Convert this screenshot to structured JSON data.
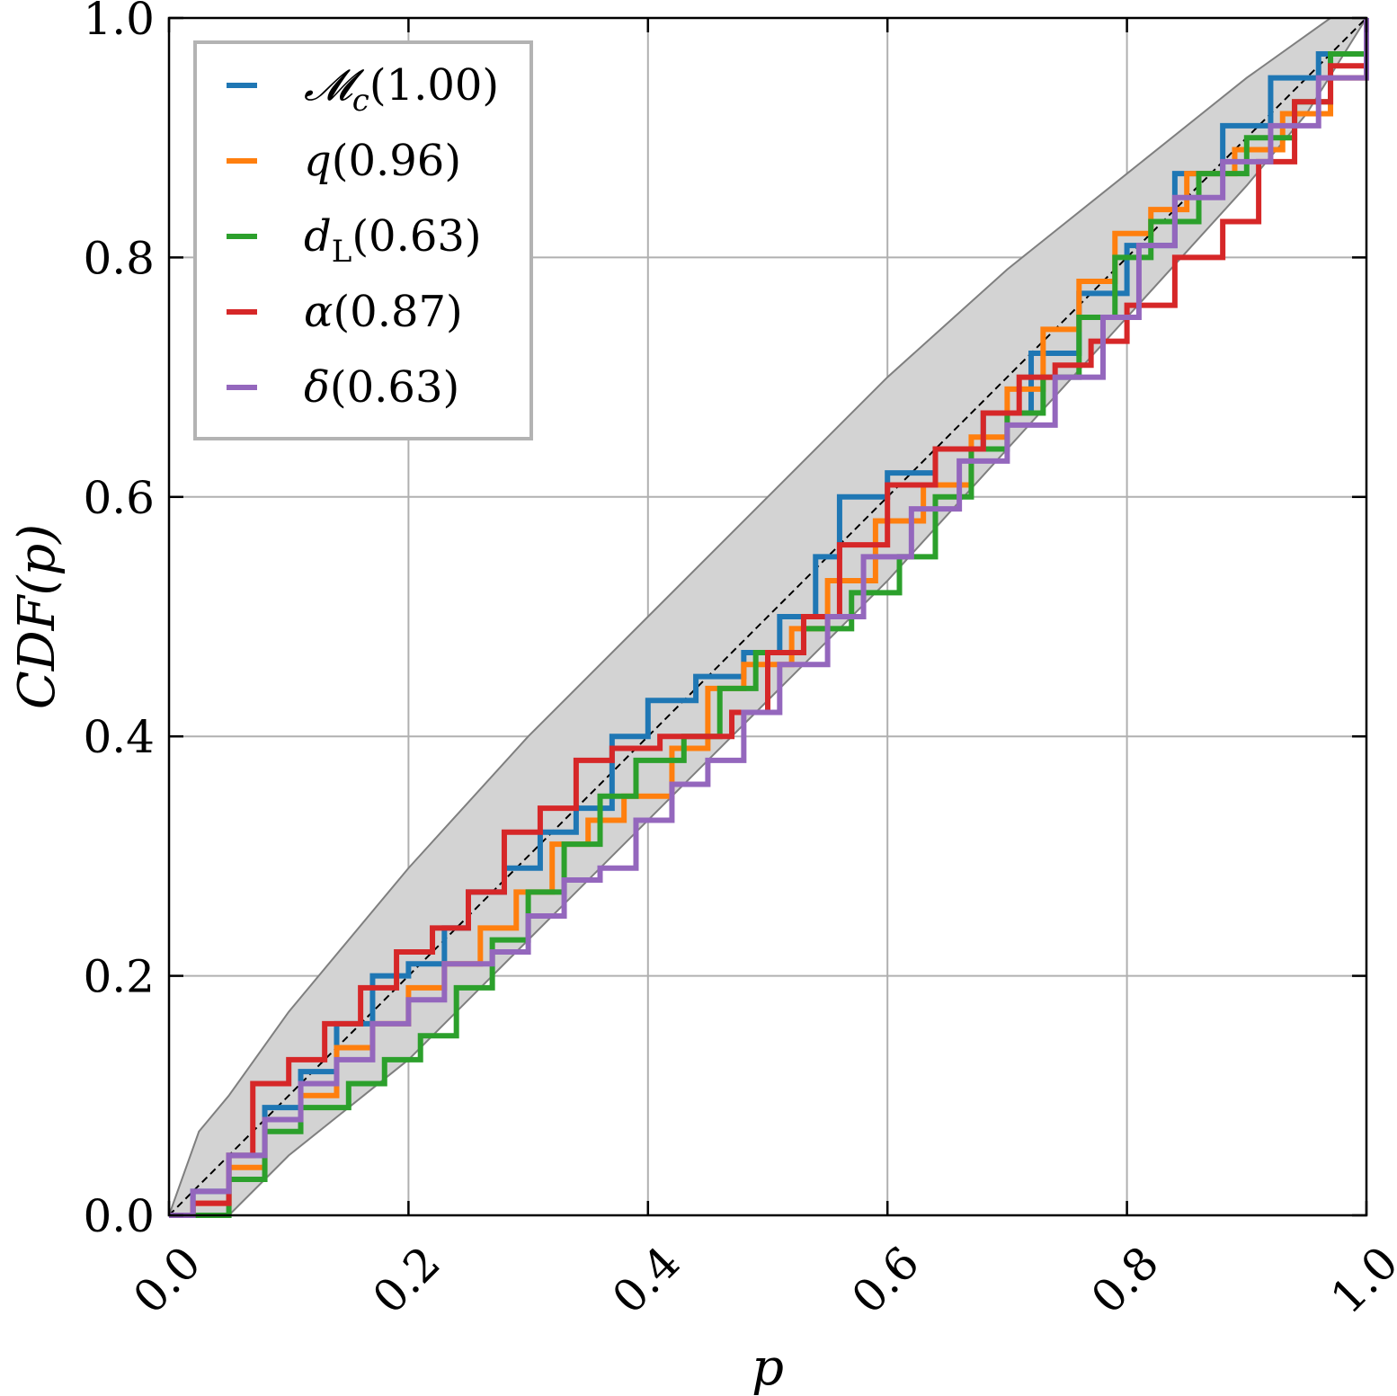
{
  "chart_data": {
    "type": "line",
    "xlabel": "p",
    "ylabel": "CDF(p)",
    "xlim": [
      0,
      1
    ],
    "ylim": [
      0,
      1
    ],
    "xticks": [
      "0.0",
      "0.2",
      "0.4",
      "0.6",
      "0.8",
      "1.0"
    ],
    "yticks": [
      "0.0",
      "0.2",
      "0.4",
      "0.6",
      "0.8",
      "1.0"
    ],
    "grid": true,
    "legend_position": "top-left",
    "confidence_band": {
      "lower": [
        [
          0,
          0
        ],
        [
          0.05,
          0.0
        ],
        [
          0.1,
          0.05
        ],
        [
          0.2,
          0.13
        ],
        [
          0.3,
          0.23
        ],
        [
          0.4,
          0.33
        ],
        [
          0.5,
          0.43
        ],
        [
          0.6,
          0.53
        ],
        [
          0.7,
          0.64
        ],
        [
          0.8,
          0.75
        ],
        [
          0.9,
          0.86
        ],
        [
          0.95,
          0.92
        ],
        [
          1,
          1
        ]
      ],
      "upper": [
        [
          0,
          0
        ],
        [
          0.025,
          0.07
        ],
        [
          0.05,
          0.1
        ],
        [
          0.1,
          0.17
        ],
        [
          0.2,
          0.29
        ],
        [
          0.3,
          0.4
        ],
        [
          0.4,
          0.5
        ],
        [
          0.5,
          0.6
        ],
        [
          0.6,
          0.7
        ],
        [
          0.7,
          0.79
        ],
        [
          0.8,
          0.87
        ],
        [
          0.9,
          0.95
        ],
        [
          0.97,
          1.0
        ],
        [
          1,
          1
        ]
      ],
      "color": "#d3d3d3"
    },
    "diagonal": {
      "from": [
        0,
        0
      ],
      "to": [
        1,
        1
      ],
      "style": "dashed",
      "color": "#000000"
    },
    "series": [
      {
        "label_main": "𝓜",
        "label_sub": "c",
        "label_value": "(1.00)",
        "color": "#1f77b4",
        "points": [
          [
            0,
            0
          ],
          [
            0.02,
            0.02
          ],
          [
            0.05,
            0.05
          ],
          [
            0.08,
            0.09
          ],
          [
            0.11,
            0.12
          ],
          [
            0.14,
            0.16
          ],
          [
            0.17,
            0.2
          ],
          [
            0.2,
            0.21
          ],
          [
            0.23,
            0.24
          ],
          [
            0.25,
            0.27
          ],
          [
            0.28,
            0.29
          ],
          [
            0.31,
            0.32
          ],
          [
            0.34,
            0.34
          ],
          [
            0.37,
            0.4
          ],
          [
            0.4,
            0.43
          ],
          [
            0.44,
            0.45
          ],
          [
            0.48,
            0.47
          ],
          [
            0.51,
            0.5
          ],
          [
            0.54,
            0.55
          ],
          [
            0.56,
            0.6
          ],
          [
            0.6,
            0.62
          ],
          [
            0.64,
            0.64
          ],
          [
            0.68,
            0.67
          ],
          [
            0.72,
            0.72
          ],
          [
            0.76,
            0.77
          ],
          [
            0.8,
            0.81
          ],
          [
            0.84,
            0.87
          ],
          [
            0.88,
            0.91
          ],
          [
            0.92,
            0.95
          ],
          [
            0.96,
            0.97
          ],
          [
            1,
            1
          ]
        ]
      },
      {
        "label_main": "q",
        "label_sub": "",
        "label_value": "(0.96)",
        "color": "#ff7f0e",
        "points": [
          [
            0,
            0
          ],
          [
            0.02,
            0.01
          ],
          [
            0.05,
            0.04
          ],
          [
            0.08,
            0.08
          ],
          [
            0.11,
            0.1
          ],
          [
            0.14,
            0.14
          ],
          [
            0.17,
            0.16
          ],
          [
            0.2,
            0.19
          ],
          [
            0.23,
            0.21
          ],
          [
            0.26,
            0.24
          ],
          [
            0.29,
            0.27
          ],
          [
            0.32,
            0.31
          ],
          [
            0.35,
            0.33
          ],
          [
            0.38,
            0.35
          ],
          [
            0.42,
            0.39
          ],
          [
            0.45,
            0.44
          ],
          [
            0.48,
            0.46
          ],
          [
            0.52,
            0.49
          ],
          [
            0.55,
            0.53
          ],
          [
            0.59,
            0.58
          ],
          [
            0.63,
            0.61
          ],
          [
            0.67,
            0.65
          ],
          [
            0.7,
            0.69
          ],
          [
            0.73,
            0.74
          ],
          [
            0.76,
            0.78
          ],
          [
            0.79,
            0.82
          ],
          [
            0.82,
            0.84
          ],
          [
            0.85,
            0.87
          ],
          [
            0.89,
            0.89
          ],
          [
            0.93,
            0.92
          ],
          [
            0.97,
            0.95
          ],
          [
            1,
            0.98
          ]
        ]
      },
      {
        "label_main": "d",
        "label_sub": "L",
        "label_value": "(0.63)",
        "color": "#2ca02c",
        "points": [
          [
            0,
            0
          ],
          [
            0.02,
            0.0
          ],
          [
            0.05,
            0.03
          ],
          [
            0.08,
            0.07
          ],
          [
            0.11,
            0.09
          ],
          [
            0.15,
            0.11
          ],
          [
            0.18,
            0.13
          ],
          [
            0.21,
            0.15
          ],
          [
            0.24,
            0.19
          ],
          [
            0.27,
            0.23
          ],
          [
            0.3,
            0.27
          ],
          [
            0.33,
            0.31
          ],
          [
            0.36,
            0.35
          ],
          [
            0.39,
            0.38
          ],
          [
            0.43,
            0.4
          ],
          [
            0.46,
            0.44
          ],
          [
            0.49,
            0.47
          ],
          [
            0.53,
            0.49
          ],
          [
            0.57,
            0.52
          ],
          [
            0.61,
            0.55
          ],
          [
            0.64,
            0.6
          ],
          [
            0.67,
            0.64
          ],
          [
            0.7,
            0.67
          ],
          [
            0.73,
            0.7
          ],
          [
            0.76,
            0.75
          ],
          [
            0.79,
            0.8
          ],
          [
            0.82,
            0.83
          ],
          [
            0.86,
            0.87
          ],
          [
            0.9,
            0.9
          ],
          [
            0.94,
            0.93
          ],
          [
            0.97,
            0.97
          ],
          [
            1,
            1
          ]
        ]
      },
      {
        "label_main": "α",
        "label_sub": "",
        "label_value": "(0.87)",
        "color": "#d62728",
        "points": [
          [
            0,
            0
          ],
          [
            0.02,
            0.01
          ],
          [
            0.05,
            0.05
          ],
          [
            0.07,
            0.11
          ],
          [
            0.1,
            0.13
          ],
          [
            0.13,
            0.16
          ],
          [
            0.16,
            0.19
          ],
          [
            0.19,
            0.22
          ],
          [
            0.22,
            0.24
          ],
          [
            0.25,
            0.27
          ],
          [
            0.28,
            0.32
          ],
          [
            0.31,
            0.34
          ],
          [
            0.34,
            0.38
          ],
          [
            0.37,
            0.39
          ],
          [
            0.41,
            0.4
          ],
          [
            0.44,
            0.4
          ],
          [
            0.47,
            0.42
          ],
          [
            0.5,
            0.47
          ],
          [
            0.53,
            0.5
          ],
          [
            0.56,
            0.56
          ],
          [
            0.6,
            0.61
          ],
          [
            0.64,
            0.64
          ],
          [
            0.68,
            0.67
          ],
          [
            0.71,
            0.7
          ],
          [
            0.74,
            0.71
          ],
          [
            0.77,
            0.73
          ],
          [
            0.8,
            0.76
          ],
          [
            0.84,
            0.8
          ],
          [
            0.88,
            0.83
          ],
          [
            0.91,
            0.88
          ],
          [
            0.94,
            0.93
          ],
          [
            0.97,
            0.96
          ],
          [
            1,
            0.99
          ]
        ]
      },
      {
        "label_main": "δ",
        "label_sub": "",
        "label_value": "(0.63)",
        "color": "#9467bd",
        "points": [
          [
            0,
            0
          ],
          [
            0.02,
            0.02
          ],
          [
            0.05,
            0.05
          ],
          [
            0.08,
            0.08
          ],
          [
            0.11,
            0.11
          ],
          [
            0.14,
            0.13
          ],
          [
            0.17,
            0.16
          ],
          [
            0.2,
            0.18
          ],
          [
            0.23,
            0.21
          ],
          [
            0.27,
            0.22
          ],
          [
            0.3,
            0.25
          ],
          [
            0.33,
            0.28
          ],
          [
            0.36,
            0.29
          ],
          [
            0.39,
            0.33
          ],
          [
            0.42,
            0.36
          ],
          [
            0.45,
            0.38
          ],
          [
            0.48,
            0.42
          ],
          [
            0.51,
            0.46
          ],
          [
            0.55,
            0.5
          ],
          [
            0.58,
            0.55
          ],
          [
            0.62,
            0.59
          ],
          [
            0.66,
            0.63
          ],
          [
            0.7,
            0.66
          ],
          [
            0.74,
            0.7
          ],
          [
            0.78,
            0.75
          ],
          [
            0.81,
            0.81
          ],
          [
            0.84,
            0.85
          ],
          [
            0.88,
            0.88
          ],
          [
            0.92,
            0.91
          ],
          [
            0.96,
            0.95
          ],
          [
            1,
            1
          ]
        ]
      }
    ]
  }
}
